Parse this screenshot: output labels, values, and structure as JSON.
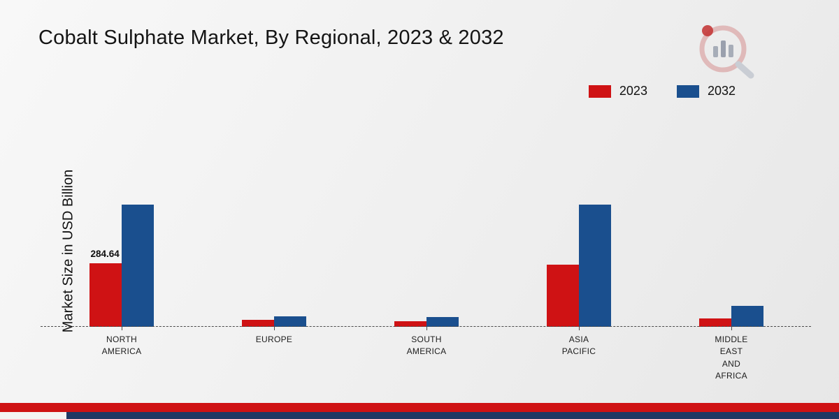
{
  "page": {
    "title": "Cobalt Sulphate Market, By Regional, 2023 & 2032",
    "y_axis_label": "Market Size in USD Billion"
  },
  "chart_data": {
    "type": "bar",
    "title": "Cobalt Sulphate Market, By Regional, 2023 & 2032",
    "xlabel": "",
    "ylabel": "Market Size in USD Billion",
    "ylim": [
      0,
      600
    ],
    "grid": false,
    "legend_position": "top-right",
    "baseline_style": "dashed",
    "categories": [
      "North America",
      "Europe",
      "South America",
      "Asia Pacific",
      "Middle East and Africa"
    ],
    "category_label_lines": [
      [
        "NORTH",
        "AMERICA"
      ],
      [
        "EUROPE"
      ],
      [
        "SOUTH",
        "AMERICA"
      ],
      [
        "ASIA",
        "PACIFIC"
      ],
      [
        "MIDDLE",
        "EAST",
        "AND",
        "AFRICA"
      ]
    ],
    "series": [
      {
        "name": "2023",
        "color": "#cf1214",
        "values": [
          284.64,
          30,
          24,
          277,
          38
        ]
      },
      {
        "name": "2032",
        "color": "#1a4f8e",
        "values": [
          545,
          48,
          45,
          545,
          93
        ]
      }
    ],
    "annotations": [
      {
        "category_index": 0,
        "series_index": 0,
        "text": "284.64"
      }
    ]
  },
  "branding": {
    "footer_red_color": "#cf1214",
    "footer_navy_color": "#203864",
    "logo_name": "market-research-logo"
  }
}
